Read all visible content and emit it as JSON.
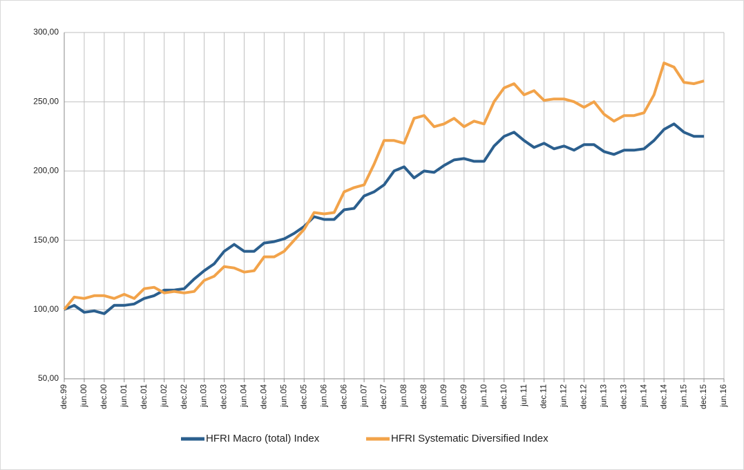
{
  "chart_data": {
    "type": "line",
    "categories": [
      "dec.99",
      null,
      "jun.00",
      null,
      "dec.00",
      null,
      "jun.01",
      null,
      "dec.01",
      null,
      "jun.02",
      null,
      "dec.02",
      null,
      "jun.03",
      null,
      "dec.03",
      null,
      "jun.04",
      null,
      "dec.04",
      null,
      "jun.05",
      null,
      "dec.05",
      null,
      "jun.06",
      null,
      "dec.06",
      null,
      "jun.07",
      null,
      "dec.07",
      null,
      "jun.08",
      null,
      "dec.08",
      null,
      "jun.09",
      null,
      "dec.09",
      null,
      "jun.10",
      null,
      "dec.10",
      null,
      "jun.11",
      null,
      "dec.11",
      null,
      "jun.12",
      null,
      "dec.12",
      null,
      "jun.13",
      null,
      "dec.13",
      null,
      "jun.14",
      null,
      "dec.14",
      null,
      "jun.15",
      null,
      "dec.15",
      null,
      "jun.16"
    ],
    "series": [
      {
        "name": "HFRI Macro (total) Index",
        "color": "#2b5f8e",
        "values": [
          100,
          103,
          98,
          99,
          97,
          103,
          103,
          104,
          108,
          110,
          114,
          114,
          115,
          122,
          128,
          133,
          142,
          147,
          142,
          142,
          148,
          149,
          151,
          155,
          160,
          167,
          165,
          165,
          172,
          173,
          182,
          185,
          190,
          200,
          203,
          195,
          200,
          199,
          204,
          208,
          209,
          207,
          207,
          218,
          225,
          228,
          222,
          217,
          220,
          216,
          218,
          215,
          219,
          219,
          214,
          212,
          215,
          215,
          216,
          222,
          230,
          234,
          228,
          225,
          225,
          null,
          null
        ]
      },
      {
        "name": "HFRI Systematic Diversified Index",
        "color": "#f2a34a",
        "values": [
          100,
          109,
          108,
          110,
          110,
          108,
          111,
          108,
          115,
          116,
          112,
          113,
          112,
          113,
          121,
          124,
          131,
          130,
          127,
          128,
          138,
          138,
          142,
          150,
          158,
          170,
          169,
          170,
          185,
          188,
          190,
          205,
          222,
          222,
          220,
          238,
          240,
          232,
          234,
          238,
          232,
          236,
          234,
          250,
          260,
          263,
          255,
          258,
          251,
          252,
          252,
          250,
          246,
          250,
          241,
          236,
          240,
          240,
          242,
          255,
          278,
          275,
          264,
          263,
          265,
          null,
          null
        ]
      }
    ],
    "ylim": [
      50,
      300
    ],
    "yticks": [
      {
        "value": 50,
        "label": "50,00"
      },
      {
        "value": 100,
        "label": "100,00"
      },
      {
        "value": 150,
        "label": "150,00"
      },
      {
        "value": 200,
        "label": "200,00"
      },
      {
        "value": 250,
        "label": "250,00"
      },
      {
        "value": 300,
        "label": "300,00"
      }
    ],
    "grid": true
  }
}
